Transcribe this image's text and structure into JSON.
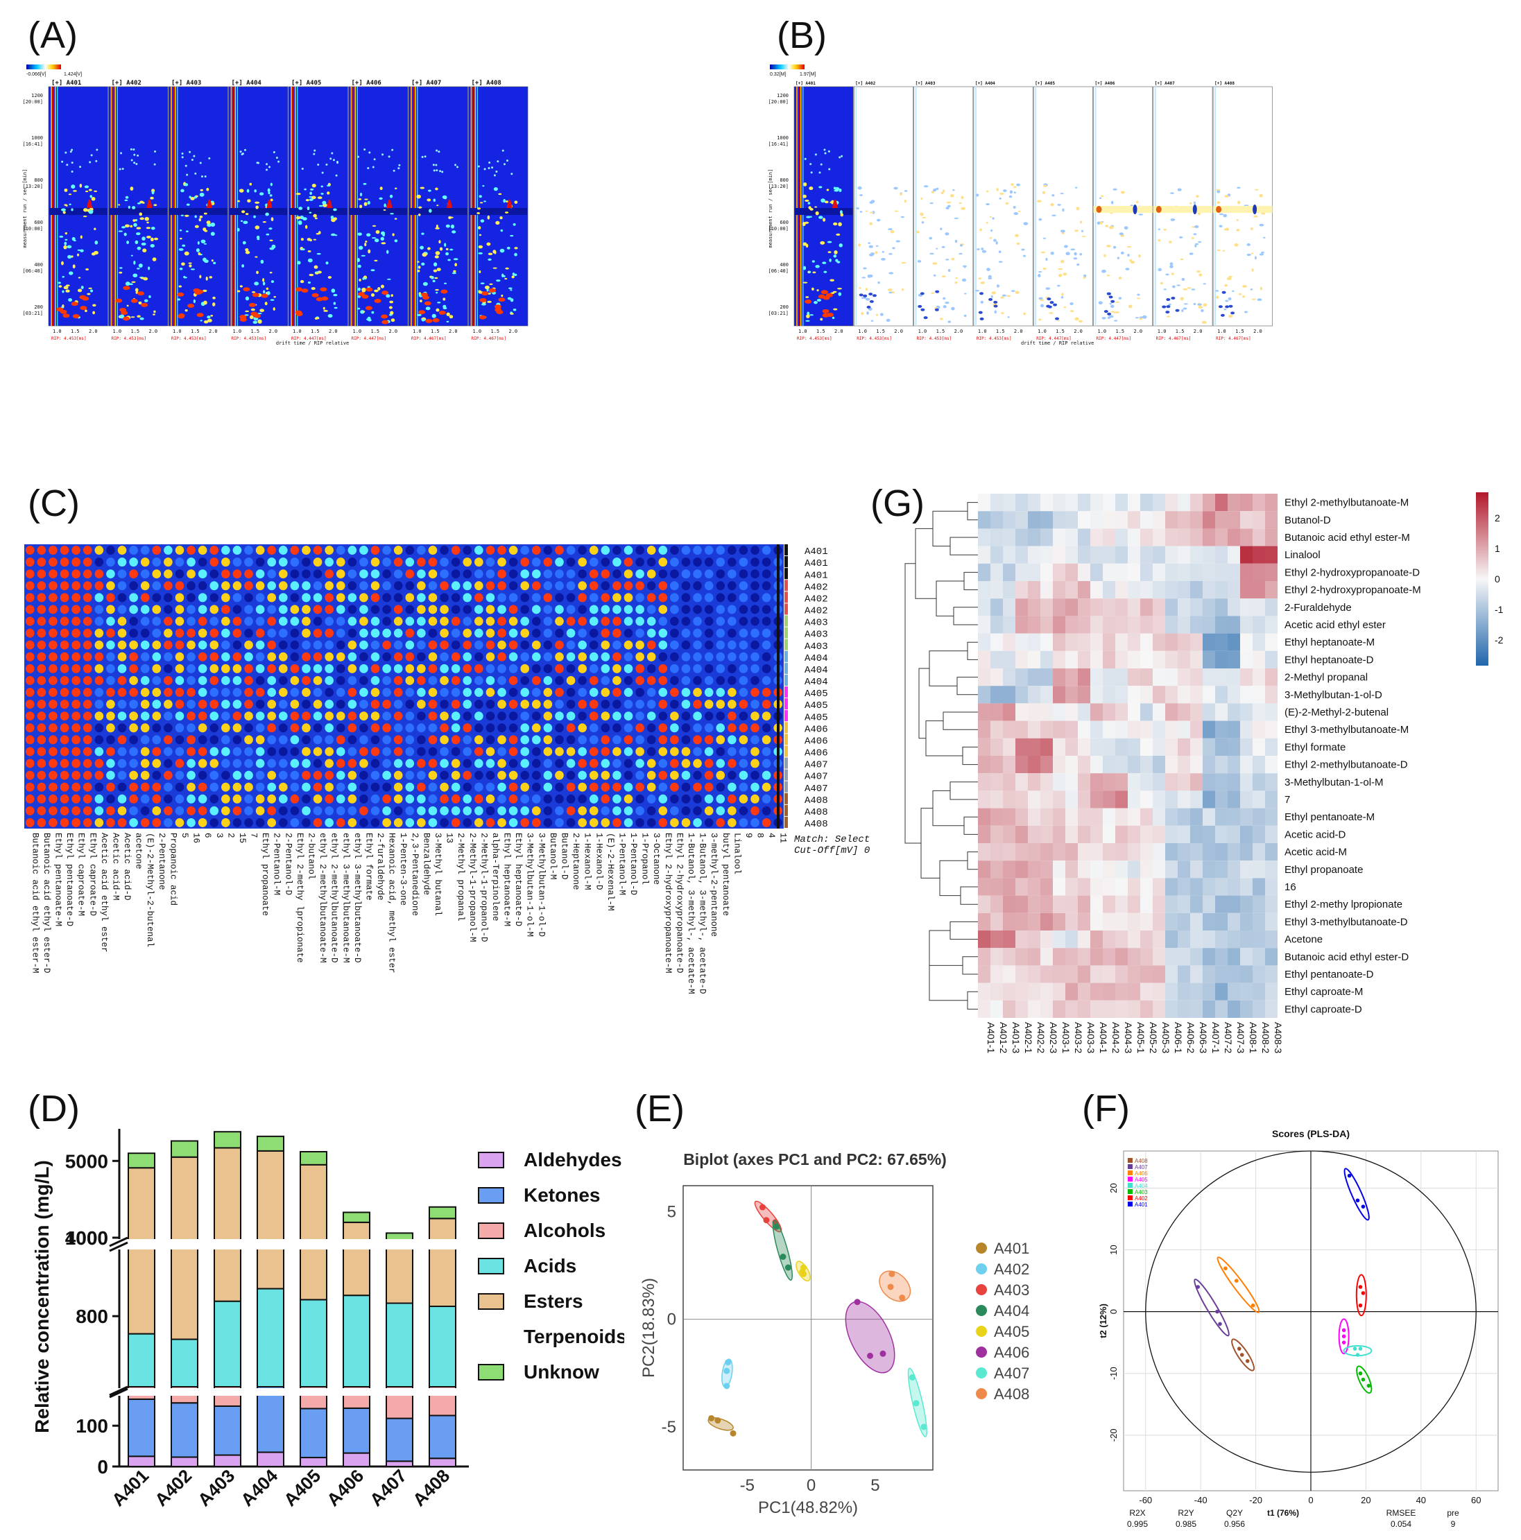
{
  "labels": {
    "A": "(A)",
    "B": "(B)",
    "C": "(C)",
    "D": "(D)",
    "E": "(E)",
    "F": "(F)",
    "G": "(G)"
  },
  "samples": [
    "A401",
    "A402",
    "A403",
    "A404",
    "A405",
    "A406",
    "A407",
    "A408"
  ],
  "spectra": {
    "scaleA": {
      "min": "-0.066[V]",
      "max": "1.424[V]"
    },
    "scaleB": {
      "min": "0.32[M]",
      "max": "1.97[M]"
    },
    "tab_prefix": "[+]",
    "y_ticks": [
      "1200",
      "[20:00]",
      "1000",
      "[16:41]",
      "800",
      "[13:20]",
      "600",
      "[10:00]",
      "400",
      "[06:40]",
      "200",
      "[03:21]"
    ],
    "y_label": "measurement run / sec [min]",
    "x_ticks": [
      "1.0",
      "1.5",
      "2.0"
    ],
    "x_label": "drift time / RIP relative",
    "rip_labels": [
      "RIP: 4.453[ms]",
      "RIP: 4.453[ms]",
      "RIP: 4.453[ms]",
      "RIP: 4.453[ms]",
      "RIP: 4.447[ms]",
      "RIP: 4.447[ms]",
      "RIP: 4.467[ms]",
      "RIP: 4.467[ms]"
    ]
  },
  "gallery": {
    "rows": [
      "A401",
      "A401",
      "A401",
      "A402",
      "A402",
      "A402",
      "A403",
      "A403",
      "A403",
      "A404",
      "A404",
      "A404",
      "A405",
      "A405",
      "A405",
      "A406",
      "A406",
      "A406",
      "A407",
      "A407",
      "A407",
      "A408",
      "A408",
      "A408"
    ],
    "match": "Match: Select",
    "cutoff": "Cut-Off[mV] 0",
    "columns": [
      "Butanoic acid ethyl ester-M",
      "Butanoic acid ethyl ester-D",
      "Ethyl pentanoate-M",
      "Ethyl pentanoate-D",
      "Ethyl caproate-M",
      "Ethyl caproate-D",
      "Acetic acid ethyl ester",
      "Acetic acid-M",
      "Acetic acid-D",
      "acetone",
      "(E)-2-Methyl-2-butenal",
      "2-Pentanone",
      "Propanoic acid",
      "5",
      "16",
      "6",
      "3",
      "2",
      "15",
      "7",
      "Ethyl propanoate",
      "2-Pentanol-M",
      "2-Pentanol-D",
      "Ethyl 2-methy lpropionate",
      "2-butanol",
      "ethyl 2-methylbutanoate-M",
      "ethyl 2-methylbutanoate-D",
      "ethyl 3-methylbutanoate-M",
      "ethyl 3-methylbutanoate-D",
      "Ethyl formate",
      "2-furaldehyde",
      "Hexanoic acid, methyl ester",
      "1-Penten-3-one",
      "2,3-Pentanedione",
      "Benzaldehyde",
      "3-Methyl butanal",
      "13",
      "2-Methyl propanal",
      "2-Methyl-1-propanol-M",
      "2-Methyl-1-propanol-D",
      "alpha-Terpinolene",
      "Ethyl heptanoate-M",
      "Ethyl heptanoate-D",
      "3-Methylbutan-1-ol-M",
      "3-Methylbutan-1-ol-D",
      "Butanol-M",
      "Butanol-D",
      "2-Heptanone",
      "1-Hexanol-M",
      "1-Hexanol-D",
      "(E)-2-Hexenal-M",
      "1-Pentanol-M",
      "1-Pentanol-D",
      "1-Propanol",
      "3-Octanone",
      "Ethyl 2-hydroxypropanoate-M",
      "Ethyl 2-hydroxypropanoate-D",
      "1-Butanol, 3-methyl-, acetate-M",
      "1-Butanol, 3-methyl-, acetate-D",
      "3-methyl-2-pentanone",
      "butyl pentanoate",
      "Linalool",
      "9",
      "8",
      "4",
      "11"
    ]
  },
  "stacked": {
    "ylabel": "Relative concentration (mg/L)",
    "yticks_top": [
      "5000",
      "4000"
    ],
    "yticks_mid": [
      "1000",
      "800"
    ],
    "yticks_bot": [
      "100",
      "0"
    ],
    "legend": [
      "Aldehydes",
      "Ketones",
      "Alcohols",
      "Acids",
      "Esters",
      "Terpenoids",
      "Unknow"
    ],
    "colors": {
      "Aldehydes": "#d9a3f0",
      "Ketones": "#6a9ef2",
      "Alcohols": "#f3aaa8",
      "Acids": "#6ce3e3",
      "Esters": "#e9c28f",
      "Terpenoids": "#ffffff",
      "Unknow": "#8edc74"
    }
  },
  "heatmap": {
    "rows": [
      "Ethyl 2-methylbutanoate-M",
      "Butanol-D",
      "Butanoic acid ethyl ester-M",
      "Linalool",
      "Ethyl 2-hydroxypropanoate-D",
      "Ethyl 2-hydroxypropanoate-M",
      "2-Furaldehyde",
      "Acetic acid ethyl ester",
      "Ethyl heptanoate-M",
      "Ethyl heptanoate-D",
      "2-Methyl propanal",
      "3-Methylbutan-1-ol-D",
      "(E)-2-Methyl-2-butenal",
      "Ethyl 3-methylbutanoate-M",
      "Ethyl formate",
      "Ethyl 2-methylbutanoate-D",
      "3-Methylbutan-1-ol-M",
      "7",
      "Ethyl pentanoate-M",
      "Acetic acid-D",
      "Acetic acid-M",
      "Ethyl propanoate",
      "16",
      "Ethyl 2-methy lpropionate",
      "Ethyl 3-methylbutanoate-D",
      "Acetone",
      "Butanoic acid ethyl ester-D",
      "Ethyl pentanoate-D",
      "Ethyl caproate-M",
      "Ethyl caproate-D"
    ],
    "cols": [
      "A401-1",
      "A401-2",
      "A401-3",
      "A402-1",
      "A402-2",
      "A402-3",
      "A403-1",
      "A403-2",
      "A403-3",
      "A404-1",
      "A404-2",
      "A404-3",
      "A405-1",
      "A405-2",
      "A405-3",
      "A406-1",
      "A406-2",
      "A406-3",
      "A407-1",
      "A407-2",
      "A407-3",
      "A408-1",
      "A408-2",
      "A408-3"
    ],
    "colorbar_ticks": [
      "2",
      "1",
      "0",
      "-1",
      "-2"
    ]
  },
  "chart_data": [
    {
      "type": "bar",
      "title": "",
      "xlabel": "",
      "ylabel": "Relative concentration (mg/L)",
      "categories": [
        "A401",
        "A402",
        "A403",
        "A404",
        "A405",
        "A406",
        "A407",
        "A408"
      ],
      "series": [
        {
          "name": "Aldehydes",
          "values": [
            25,
            23,
            28,
            35,
            22,
            33,
            13,
            20
          ]
        },
        {
          "name": "Ketones",
          "values": [
            140,
            133,
            120,
            140,
            120,
            110,
            105,
            105
          ]
        },
        {
          "name": "Alcohols",
          "values": [
            20,
            25,
            95,
            100,
            60,
            135,
            85,
            140
          ]
        },
        {
          "name": "Acids",
          "values": [
            570,
            560,
            595,
            595,
            640,
            575,
            630,
            560
          ]
        },
        {
          "name": "Esters",
          "values": [
            3355,
            3360,
            3560,
            3450,
            3360,
            2370,
            2220,
            2460
          ]
        },
        {
          "name": "Terpenoids",
          "values": [
            0,
            0,
            0,
            0,
            0,
            0,
            0,
            0
          ]
        },
        {
          "name": "Unknow",
          "values": [
            190,
            210,
            210,
            190,
            170,
            130,
            110,
            150
          ]
        }
      ],
      "totals": [
        5100,
        5260,
        5380,
        5320,
        5120,
        4330,
        4060,
        4400
      ],
      "ylim": [
        0,
        5400
      ]
    },
    {
      "type": "scatter",
      "title": "Biplot (axes PC1 and PC2: 67.65%)",
      "xlabel": "PC1(48.82%)",
      "ylabel": "PC2(18.83%)",
      "xticks": [
        "-5",
        "0",
        "5"
      ],
      "yticks": [
        "5",
        "0",
        "-5"
      ],
      "xlim": [
        -10,
        9.5
      ],
      "ylim": [
        -7,
        6.2
      ],
      "series": [
        {
          "name": "A401",
          "color": "#b8862a",
          "points": [
            [
              -7.3,
              -4.7
            ],
            [
              -6.1,
              -5.3
            ],
            [
              -7.8,
              -4.6
            ]
          ]
        },
        {
          "name": "A402",
          "color": "#6cd0ee",
          "points": [
            [
              -6.6,
              -2.4
            ],
            [
              -6.6,
              -3.1
            ],
            [
              -6.5,
              -2.0
            ]
          ]
        },
        {
          "name": "A403",
          "color": "#e8423e",
          "points": [
            [
              -3.8,
              5.2
            ],
            [
              -3.5,
              4.6
            ],
            [
              -2.8,
              4.5
            ]
          ]
        },
        {
          "name": "A404",
          "color": "#2a8a5a",
          "points": [
            [
              -2.7,
              4.3
            ],
            [
              -2.2,
              2.9
            ],
            [
              -1.8,
              2.4
            ]
          ]
        },
        {
          "name": "A405",
          "color": "#e8d21a",
          "points": [
            [
              -0.6,
              2.1
            ],
            [
              -0.6,
              2.4
            ],
            [
              -0.7,
              2.2
            ]
          ]
        },
        {
          "name": "A406",
          "color": "#a030a0",
          "points": [
            [
              3.6,
              0.8
            ],
            [
              4.6,
              -1.7
            ],
            [
              5.6,
              -1.6
            ]
          ]
        },
        {
          "name": "A407",
          "color": "#5ae8d0",
          "points": [
            [
              7.9,
              -2.7
            ],
            [
              8.2,
              -3.9
            ],
            [
              8.8,
              -5.0
            ]
          ]
        },
        {
          "name": "A408",
          "color": "#f08a4a",
          "points": [
            [
              6.2,
              1.5
            ],
            [
              6.3,
              2.1
            ],
            [
              7.1,
              1.0
            ]
          ]
        }
      ]
    },
    {
      "type": "scatter",
      "title": "Scores (PLS-DA)",
      "xlabel": "t1 (76%)",
      "ylabel": "t2 (12%)",
      "xticks": [
        "-60",
        "-40",
        "-20",
        "0",
        "20",
        "40",
        "60"
      ],
      "yticks": [
        "20",
        "10",
        "0",
        "-10",
        "-20"
      ],
      "xlim": [
        -68,
        68
      ],
      "ylim": [
        -29,
        26
      ],
      "stats": {
        "labels": [
          "R2X",
          "R2Y",
          "Q2Y",
          "RMSEE",
          "pre"
        ],
        "values": [
          "0.995",
          "0.985",
          "0.956",
          "0.054",
          "9"
        ]
      },
      "series": [
        {
          "name": "A408",
          "color": "#a0522d",
          "points": [
            [
              -26,
              -6
            ],
            [
              -25,
              -7
            ],
            [
              -23,
              -8
            ]
          ]
        },
        {
          "name": "A407",
          "color": "#6a3d9a",
          "points": [
            [
              -41,
              4
            ],
            [
              -34,
              0
            ],
            [
              -33,
              -2
            ]
          ]
        },
        {
          "name": "A406",
          "color": "#ff7f00",
          "points": [
            [
              -31,
              7
            ],
            [
              -27,
              5
            ],
            [
              -21,
              1
            ]
          ]
        },
        {
          "name": "A405",
          "color": "#ff00ff",
          "points": [
            [
              12,
              -3
            ],
            [
              12,
              -4
            ],
            [
              12,
              -5
            ]
          ]
        },
        {
          "name": "A404",
          "color": "#40e0d0",
          "points": [
            [
              16,
              -6
            ],
            [
              17,
              -7
            ],
            [
              18,
              -6
            ]
          ]
        },
        {
          "name": "A403",
          "color": "#00bb00",
          "points": [
            [
              18,
              -10
            ],
            [
              21,
              -12
            ],
            [
              19,
              -11
            ]
          ]
        },
        {
          "name": "A402",
          "color": "#ff0000",
          "points": [
            [
              18,
              4
            ],
            [
              19,
              3
            ],
            [
              18,
              1
            ]
          ]
        },
        {
          "name": "A401",
          "color": "#0000ee",
          "points": [
            [
              14,
              22
            ],
            [
              17,
              18
            ],
            [
              19,
              17
            ]
          ]
        }
      ]
    }
  ]
}
